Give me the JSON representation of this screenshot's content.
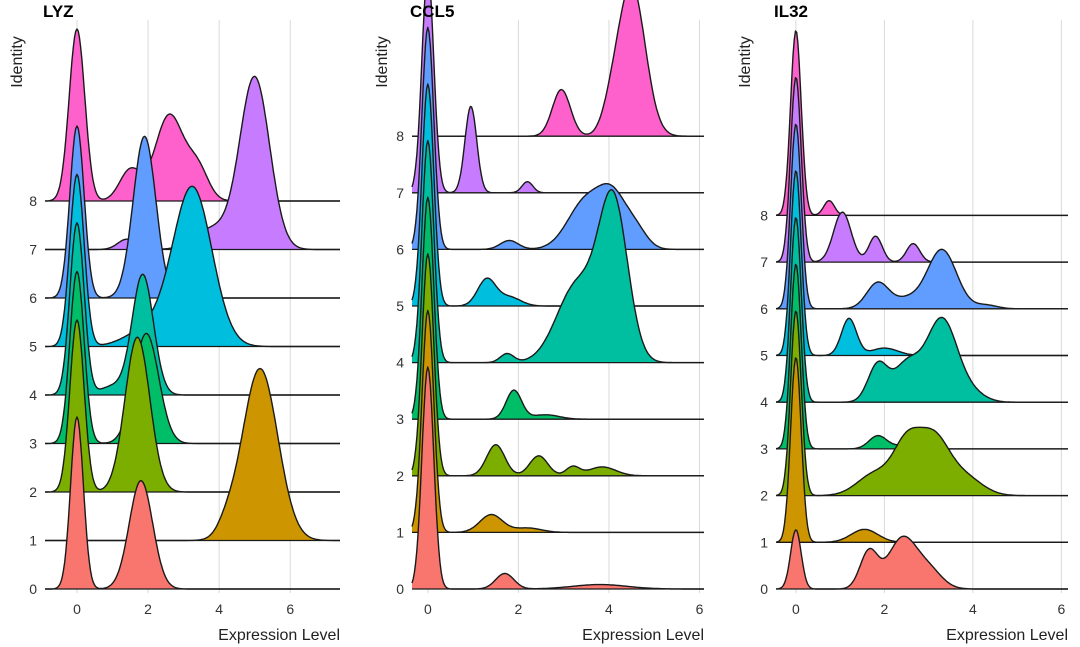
{
  "identity_colors": {
    "0": "#F8766D",
    "1": "#CD9600",
    "2": "#7CAE00",
    "3": "#00BE67",
    "4": "#00BFA0",
    "5": "#00BFDE",
    "6": "#619CFF",
    "7": "#C77CFF",
    "8": "#FF61CC"
  },
  "chart_data": [
    {
      "type": "ridgeline",
      "title": "LYZ",
      "xlabel": "Expression Level",
      "ylabel": "Identity",
      "xlim": [
        -0.9,
        7.4
      ],
      "xticks": [
        0,
        2,
        4,
        6
      ],
      "identities": [
        "0",
        "1",
        "2",
        "3",
        "4",
        "5",
        "6",
        "7",
        "8"
      ],
      "series": [
        {
          "identity": "0",
          "peaks": [
            {
              "x": 0.0,
              "sd": 0.18,
              "h": 1.0
            },
            {
              "x": 1.8,
              "sd": 0.33,
              "h": 0.63
            }
          ]
        },
        {
          "identity": "1",
          "peaks": [
            {
              "x": 5.15,
              "sd": 0.5,
              "h": 1.0
            },
            {
              "x": 4.2,
              "sd": 0.25,
              "h": 0.06
            }
          ]
        },
        {
          "identity": "2",
          "peaks": [
            {
              "x": 0.0,
              "sd": 0.2,
              "h": 1.0
            },
            {
              "x": 1.7,
              "sd": 0.35,
              "h": 0.9
            }
          ]
        },
        {
          "identity": "3",
          "peaks": [
            {
              "x": 0.0,
              "sd": 0.2,
              "h": 1.0
            },
            {
              "x": 1.95,
              "sd": 0.35,
              "h": 0.64
            }
          ]
        },
        {
          "identity": "4",
          "peaks": [
            {
              "x": 0.0,
              "sd": 0.2,
              "h": 1.0
            },
            {
              "x": 1.85,
              "sd": 0.3,
              "h": 0.7
            },
            {
              "x": 1.0,
              "sd": 0.35,
              "h": 0.05
            }
          ]
        },
        {
          "identity": "5",
          "peaks": [
            {
              "x": 0.0,
              "sd": 0.2,
              "h": 1.0
            },
            {
              "x": 3.25,
              "sd": 0.55,
              "h": 0.92
            },
            {
              "x": 2.0,
              "sd": 0.6,
              "h": 0.1
            }
          ]
        },
        {
          "identity": "6",
          "peaks": [
            {
              "x": 0.0,
              "sd": 0.2,
              "h": 1.0
            },
            {
              "x": 1.9,
              "sd": 0.32,
              "h": 0.94
            }
          ]
        },
        {
          "identity": "7",
          "peaks": [
            {
              "x": 5.0,
              "sd": 0.42,
              "h": 1.0
            },
            {
              "x": 3.8,
              "sd": 0.5,
              "h": 0.12
            },
            {
              "x": 1.4,
              "sd": 0.25,
              "h": 0.06
            }
          ]
        },
        {
          "identity": "8",
          "peaks": [
            {
              "x": 0.0,
              "sd": 0.22,
              "h": 1.0
            },
            {
              "x": 1.5,
              "sd": 0.3,
              "h": 0.18
            },
            {
              "x": 2.6,
              "sd": 0.4,
              "h": 0.5
            },
            {
              "x": 3.4,
              "sd": 0.3,
              "h": 0.18
            }
          ]
        }
      ]
    },
    {
      "type": "ridgeline",
      "title": "CCL5",
      "xlabel": "Expression Level",
      "ylabel": "Identity",
      "xlim": [
        -0.35,
        6.1
      ],
      "xticks": [
        0,
        2,
        4,
        6
      ],
      "identities": [
        "0",
        "1",
        "2",
        "3",
        "4",
        "5",
        "6",
        "7",
        "8"
      ],
      "series": [
        {
          "identity": "0",
          "peaks": [
            {
              "x": 0.0,
              "sd": 0.13,
              "h": 1.0
            },
            {
              "x": 1.7,
              "sd": 0.2,
              "h": 0.07
            },
            {
              "x": 3.8,
              "sd": 0.6,
              "h": 0.02
            }
          ]
        },
        {
          "identity": "1",
          "peaks": [
            {
              "x": 0.0,
              "sd": 0.13,
              "h": 1.0
            },
            {
              "x": 1.4,
              "sd": 0.25,
              "h": 0.08
            },
            {
              "x": 2.2,
              "sd": 0.3,
              "h": 0.02
            }
          ]
        },
        {
          "identity": "2",
          "peaks": [
            {
              "x": 0.0,
              "sd": 0.13,
              "h": 1.0
            },
            {
              "x": 1.5,
              "sd": 0.2,
              "h": 0.14
            },
            {
              "x": 2.45,
              "sd": 0.2,
              "h": 0.09
            },
            {
              "x": 3.2,
              "sd": 0.15,
              "h": 0.04
            },
            {
              "x": 3.85,
              "sd": 0.3,
              "h": 0.04
            }
          ]
        },
        {
          "identity": "3",
          "peaks": [
            {
              "x": 0.0,
              "sd": 0.13,
              "h": 1.0
            },
            {
              "x": 1.9,
              "sd": 0.17,
              "h": 0.13
            },
            {
              "x": 2.6,
              "sd": 0.3,
              "h": 0.02
            }
          ]
        },
        {
          "identity": "4",
          "peaks": [
            {
              "x": 0.0,
              "sd": 0.13,
              "h": 1.0
            },
            {
              "x": 1.75,
              "sd": 0.15,
              "h": 0.04
            },
            {
              "x": 4.1,
              "sd": 0.32,
              "h": 0.7
            },
            {
              "x": 3.3,
              "sd": 0.45,
              "h": 0.35
            }
          ]
        },
        {
          "identity": "5",
          "peaks": [
            {
              "x": 0.0,
              "sd": 0.13,
              "h": 1.0
            },
            {
              "x": 1.3,
              "sd": 0.2,
              "h": 0.12
            },
            {
              "x": 1.8,
              "sd": 0.25,
              "h": 0.04
            }
          ]
        },
        {
          "identity": "6",
          "peaks": [
            {
              "x": 0.0,
              "sd": 0.13,
              "h": 1.0
            },
            {
              "x": 1.8,
              "sd": 0.2,
              "h": 0.04
            },
            {
              "x": 3.5,
              "sd": 0.4,
              "h": 0.22
            },
            {
              "x": 4.1,
              "sd": 0.3,
              "h": 0.2
            },
            {
              "x": 4.6,
              "sd": 0.25,
              "h": 0.08
            }
          ]
        },
        {
          "identity": "7",
          "peaks": [
            {
              "x": 0.0,
              "sd": 0.13,
              "h": 1.0
            },
            {
              "x": 0.95,
              "sd": 0.13,
              "h": 0.39
            },
            {
              "x": 2.2,
              "sd": 0.12,
              "h": 0.05
            }
          ]
        },
        {
          "identity": "8",
          "peaks": [
            {
              "x": 2.95,
              "sd": 0.2,
              "h": 0.21
            },
            {
              "x": 4.5,
              "sd": 0.3,
              "h": 0.68
            },
            {
              "x": 4.05,
              "sd": 0.2,
              "h": 0.08
            }
          ]
        }
      ]
    },
    {
      "type": "ridgeline",
      "title": "IL32",
      "xlabel": "Expression Level",
      "ylabel": "Identity",
      "xlim": [
        -0.45,
        6.15
      ],
      "xticks": [
        0,
        2,
        4,
        6
      ],
      "identities": [
        "0",
        "1",
        "2",
        "3",
        "4",
        "5",
        "6",
        "7",
        "8"
      ],
      "series": [
        {
          "identity": "0",
          "peaks": [
            {
              "x": 0.0,
              "sd": 0.12,
              "h": 0.32
            },
            {
              "x": 1.65,
              "sd": 0.2,
              "h": 0.2
            },
            {
              "x": 2.4,
              "sd": 0.32,
              "h": 0.27
            },
            {
              "x": 3.0,
              "sd": 0.3,
              "h": 0.1
            }
          ]
        },
        {
          "identity": "1",
          "peaks": [
            {
              "x": 0.0,
              "sd": 0.12,
              "h": 1.0
            },
            {
              "x": 1.55,
              "sd": 0.3,
              "h": 0.07
            }
          ]
        },
        {
          "identity": "2",
          "peaks": [
            {
              "x": 0.0,
              "sd": 0.12,
              "h": 1.0
            },
            {
              "x": 1.8,
              "sd": 0.4,
              "h": 0.12
            },
            {
              "x": 2.5,
              "sd": 0.3,
              "h": 0.25
            },
            {
              "x": 3.1,
              "sd": 0.35,
              "h": 0.3
            },
            {
              "x": 3.8,
              "sd": 0.4,
              "h": 0.1
            }
          ]
        },
        {
          "identity": "3",
          "peaks": [
            {
              "x": 0.0,
              "sd": 0.12,
              "h": 1.0
            },
            {
              "x": 1.85,
              "sd": 0.2,
              "h": 0.07
            },
            {
              "x": 2.5,
              "sd": 0.3,
              "h": 0.02
            }
          ]
        },
        {
          "identity": "4",
          "peaks": [
            {
              "x": 0.0,
              "sd": 0.12,
              "h": 1.0
            },
            {
              "x": 1.85,
              "sd": 0.22,
              "h": 0.2
            },
            {
              "x": 2.5,
              "sd": 0.3,
              "h": 0.2
            },
            {
              "x": 3.3,
              "sd": 0.35,
              "h": 0.45
            },
            {
              "x": 4.0,
              "sd": 0.3,
              "h": 0.04
            }
          ]
        },
        {
          "identity": "5",
          "peaks": [
            {
              "x": 0.0,
              "sd": 0.12,
              "h": 1.0
            },
            {
              "x": 1.2,
              "sd": 0.17,
              "h": 0.2
            },
            {
              "x": 2.0,
              "sd": 0.3,
              "h": 0.04
            }
          ]
        },
        {
          "identity": "6",
          "peaks": [
            {
              "x": 0.0,
              "sd": 0.12,
              "h": 1.0
            },
            {
              "x": 1.85,
              "sd": 0.25,
              "h": 0.14
            },
            {
              "x": 2.5,
              "sd": 0.3,
              "h": 0.05
            },
            {
              "x": 3.3,
              "sd": 0.33,
              "h": 0.32
            },
            {
              "x": 4.3,
              "sd": 0.25,
              "h": 0.02
            }
          ]
        },
        {
          "identity": "7",
          "peaks": [
            {
              "x": 0.0,
              "sd": 0.12,
              "h": 1.0
            },
            {
              "x": 1.05,
              "sd": 0.2,
              "h": 0.27
            },
            {
              "x": 1.8,
              "sd": 0.15,
              "h": 0.14
            },
            {
              "x": 2.65,
              "sd": 0.15,
              "h": 0.1
            }
          ]
        },
        {
          "identity": "8",
          "peaks": [
            {
              "x": 0.0,
              "sd": 0.12,
              "h": 1.0
            },
            {
              "x": 0.75,
              "sd": 0.12,
              "h": 0.08
            }
          ]
        }
      ]
    }
  ]
}
